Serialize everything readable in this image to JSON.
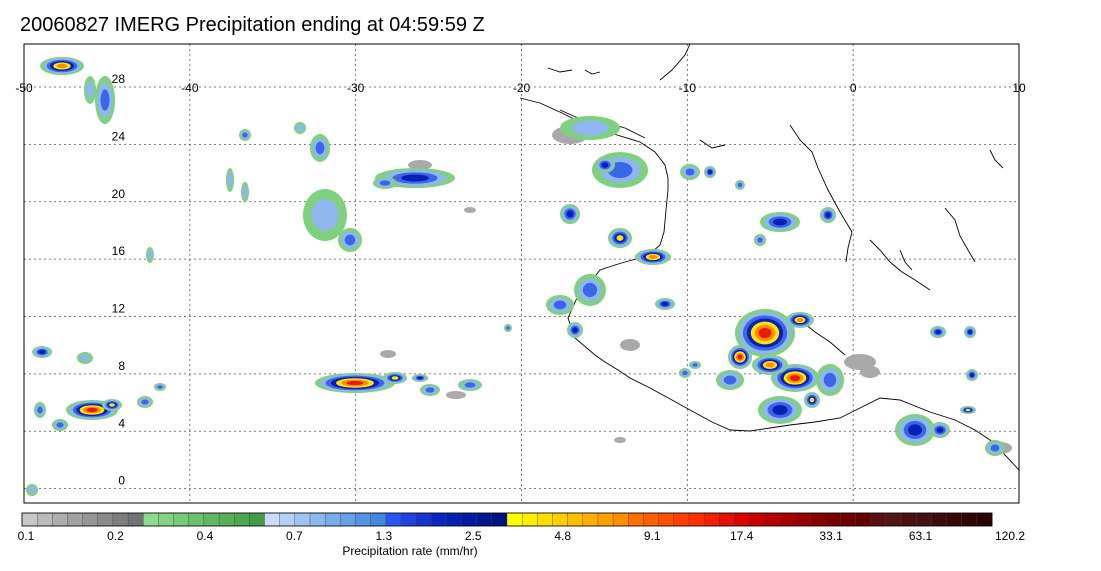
{
  "title": "20060827 IMERG Precipitation ending at 04:59:59 Z",
  "map": {
    "lon_range": [
      -50,
      10
    ],
    "lat_range": [
      -1,
      31
    ],
    "lon_ticks": [
      -50,
      -40,
      -30,
      -20,
      -10,
      0,
      10
    ],
    "lon_tick_labels": [
      "-50",
      "-40",
      "-30",
      "-20",
      "-10",
      "0",
      "10"
    ],
    "lat_ticks": [
      0,
      4,
      8,
      12,
      16,
      20,
      24,
      28
    ],
    "lat_tick_labels": [
      "0",
      "4",
      "8",
      "12",
      "16",
      "20",
      "24",
      "28"
    ],
    "gridlines": true
  },
  "colorbar": {
    "label": "Precipitation rate (mm/hr)",
    "tick_labels": [
      "0.1",
      "0.2",
      "0.4",
      "0.7",
      "1.3",
      "2.5",
      "4.8",
      "9.1",
      "17.4",
      "33.1",
      "63.1",
      "120.2"
    ],
    "colors": [
      "#c8c8c8",
      "#bbbbbb",
      "#aeaeae",
      "#a2a2a2",
      "#969696",
      "#8a8a8a",
      "#7e7e7e",
      "#727272",
      "#8ddc8d",
      "#82d382",
      "#77ca77",
      "#6cc16c",
      "#62b862",
      "#58af58",
      "#4ea64e",
      "#449d44",
      "#c6dcfa",
      "#b3d0f6",
      "#a0c4f2",
      "#8db8ee",
      "#7aacea",
      "#67a0e6",
      "#5494e2",
      "#4188de",
      "#2a55f0",
      "#1f44e0",
      "#1535d0",
      "#0b27c0",
      "#0620b0",
      "#041ba0",
      "#021690",
      "#001180",
      "#ffff00",
      "#ffef00",
      "#ffdf00",
      "#ffcf00",
      "#ffbf00",
      "#ffaf00",
      "#ff9f00",
      "#ff8f00",
      "#ff6f00",
      "#ff5f00",
      "#ff4f00",
      "#ff3f00",
      "#ff2f00",
      "#f21f00",
      "#e51100",
      "#d80500",
      "#c80000",
      "#b80000",
      "#a80000",
      "#980000",
      "#880000",
      "#780000",
      "#6d0000",
      "#620000",
      "#5a1010",
      "#521414",
      "#4a1010",
      "#441010",
      "#3e0c0c",
      "#380808",
      "#320505",
      "#2c0303"
    ]
  }
}
